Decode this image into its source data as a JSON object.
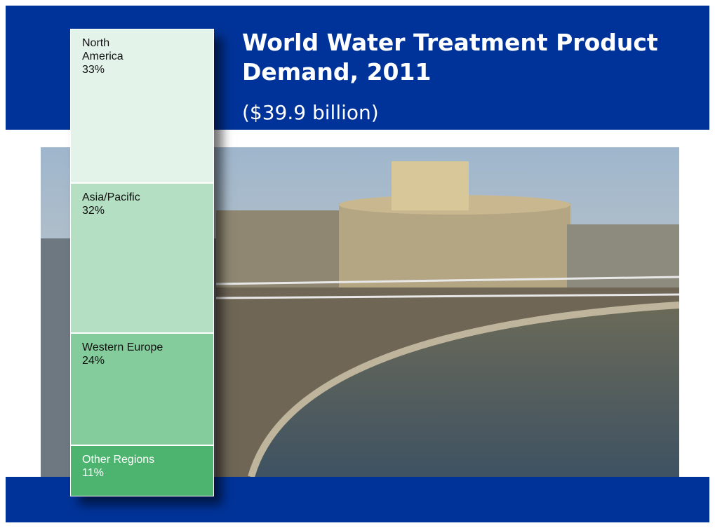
{
  "chart_data": {
    "type": "stacked-bar",
    "title": "World Water Treatment Product Demand, 2011",
    "subtitle": "($39.9 billion)",
    "categories": [
      "North America",
      "Asia/Pacific",
      "Western Europe",
      "Other Regions"
    ],
    "values": [
      33,
      32,
      24,
      11
    ],
    "value_labels": [
      "33%",
      "32%",
      "24%",
      "11%"
    ],
    "colors": [
      "#e4f3ea",
      "#b4dfc3",
      "#84cc9b",
      "#4db46f"
    ],
    "text_colors": [
      "#111111",
      "#111111",
      "#111111",
      "#ffffff"
    ]
  }
}
